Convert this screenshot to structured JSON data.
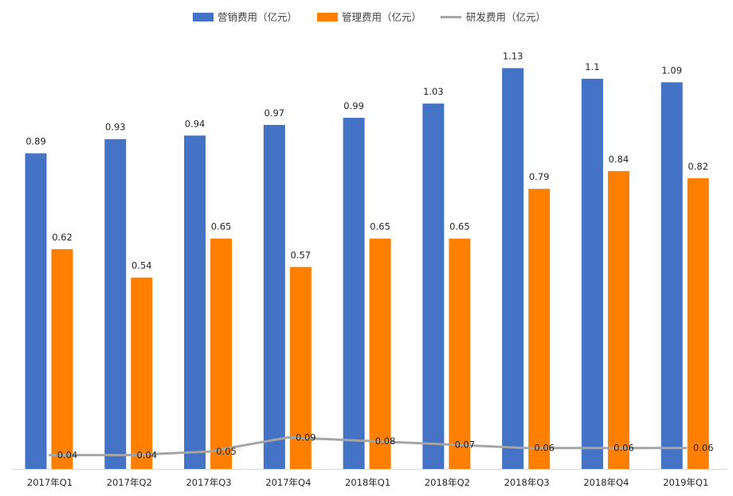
{
  "chart_data": {
    "type": "bar",
    "title": "",
    "xlabel": "",
    "ylabel": "",
    "ylim": [
      0,
      1.2
    ],
    "grid": false,
    "legend_position": "top",
    "categories": [
      "2017年Q1",
      "2017年Q2",
      "2017年Q3",
      "2017年Q4",
      "2018年Q1",
      "2018年Q2",
      "2018年Q3",
      "2018年Q4",
      "2019年Q1"
    ],
    "series": [
      {
        "name": "营销费用（亿元）",
        "type": "bar",
        "color": "#4472C4",
        "values": [
          0.89,
          0.93,
          0.94,
          0.97,
          0.99,
          1.03,
          1.13,
          1.1,
          1.09
        ],
        "labels": [
          "0.89",
          "0.93",
          "0.94",
          "0.97",
          "0.99",
          "1.03",
          "1.13",
          "1.1",
          "1.09"
        ]
      },
      {
        "name": "管理费用（亿元）",
        "type": "bar",
        "color": "#FF7F00",
        "values": [
          0.62,
          0.54,
          0.65,
          0.57,
          0.65,
          0.65,
          0.79,
          0.84,
          0.82
        ],
        "labels": [
          "0.62",
          "0.54",
          "0.65",
          "0.57",
          "0.65",
          "0.65",
          "0.79",
          "0.84",
          "0.82"
        ]
      },
      {
        "name": "研发费用（亿元）",
        "type": "line",
        "color": "#A5A5A5",
        "values": [
          0.04,
          0.04,
          0.05,
          0.09,
          0.08,
          0.07,
          0.06,
          0.06,
          0.06
        ],
        "labels": [
          "0.04",
          "0.04",
          "0.05",
          "0.09",
          "0.08",
          "0.07",
          "0.06",
          "0.06",
          "0.06"
        ]
      }
    ]
  }
}
